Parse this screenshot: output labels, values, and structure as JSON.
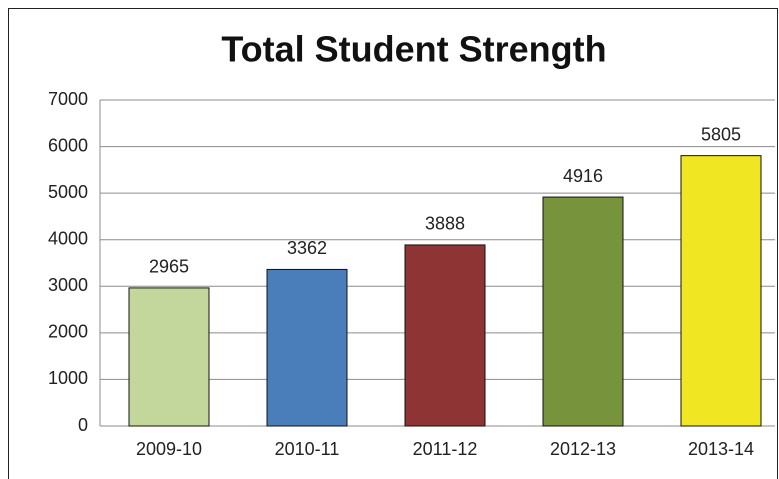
{
  "chart_data": {
    "type": "bar",
    "title": "Total Student Strength",
    "categories": [
      "2009-10",
      "2010-11",
      "2011-12",
      "2012-13",
      "2013-14"
    ],
    "values": [
      2965,
      3362,
      3888,
      4916,
      5805
    ],
    "colors": [
      "#c3d69b",
      "#4a7ebb",
      "#8e3434",
      "#77933c",
      "#f0e622"
    ],
    "ylim": [
      0,
      7000
    ],
    "yticks": [
      0,
      1000,
      2000,
      3000,
      4000,
      5000,
      6000,
      7000
    ],
    "grid": true
  }
}
